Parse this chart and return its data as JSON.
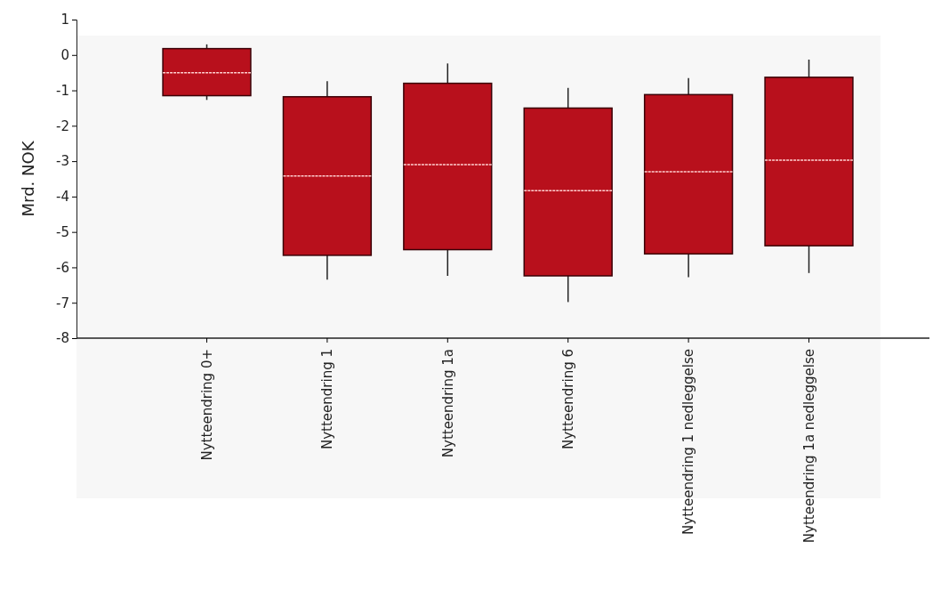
{
  "chart_data": {
    "type": "box",
    "ylabel": "Mrd. NOK",
    "categories": [
      "Nytteendring 0+",
      "Nytteendring 1",
      "Nytteendring 1a",
      "Nytteendring 6",
      "Nytteendring 1 nedleggelse",
      "Nytteendring 1a nedleggelse"
    ],
    "color": "#b8101c",
    "ylim": [
      -8,
      1
    ],
    "yticks": [
      1,
      0,
      -1,
      -2,
      -3,
      -4,
      -5,
      -6,
      -7,
      -8
    ],
    "boxes": [
      {
        "low": -1.27,
        "q1": -1.15,
        "median": -0.5,
        "q3": 0.18,
        "high": 0.3
      },
      {
        "low": -6.35,
        "q1": -5.66,
        "median": -3.42,
        "q3": -1.18,
        "high": -0.74
      },
      {
        "low": -6.24,
        "q1": -5.5,
        "median": -3.1,
        "q3": -0.8,
        "high": -0.24
      },
      {
        "low": -6.98,
        "q1": -6.24,
        "median": -3.83,
        "q3": -1.5,
        "high": -0.93
      },
      {
        "low": -6.28,
        "q1": -5.62,
        "median": -3.3,
        "q3": -1.12,
        "high": -0.65
      },
      {
        "low": -6.16,
        "q1": -5.39,
        "median": -2.97,
        "q3": -0.63,
        "high": -0.13
      }
    ]
  }
}
